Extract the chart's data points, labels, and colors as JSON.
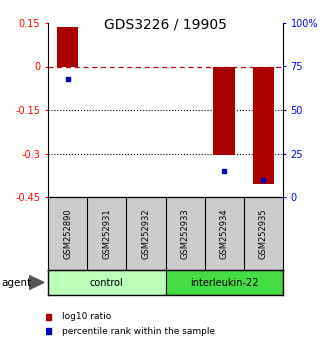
{
  "title": "GDS3226 / 19905",
  "samples": [
    "GSM252890",
    "GSM252931",
    "GSM252932",
    "GSM252933",
    "GSM252934",
    "GSM252935"
  ],
  "log10_ratio": [
    0.135,
    0.0,
    0.0,
    0.0,
    -0.305,
    -0.405
  ],
  "percentile_rank": [
    68,
    0,
    0,
    0,
    15,
    10
  ],
  "groups": [
    {
      "label": "control",
      "color": "#bbffbb",
      "samples": [
        0,
        1,
        2
      ]
    },
    {
      "label": "interleukin-22",
      "color": "#44dd44",
      "samples": [
        3,
        4,
        5
      ]
    }
  ],
  "ylim_left": [
    -0.45,
    0.15
  ],
  "ylim_right": [
    0,
    100
  ],
  "yticks_left": [
    0.15,
    0.0,
    -0.15,
    -0.3,
    -0.45
  ],
  "yticks_left_labels": [
    "0.15",
    "0",
    "-0.15",
    "-0.3",
    "-0.45"
  ],
  "yticks_right": [
    100,
    75,
    50,
    25,
    0
  ],
  "yticks_right_labels": [
    "100%",
    "75",
    "50",
    "25",
    "0"
  ],
  "bar_color": "#aa0000",
  "dot_color": "#0000bb",
  "zero_line_color": "#cc0000",
  "grid_color": "#000000",
  "legend_bar_label": "log10 ratio",
  "legend_dot_label": "percentile rank within the sample",
  "agent_label": "agent",
  "background_color": "#ffffff",
  "sample_bg_color": "#cccccc"
}
